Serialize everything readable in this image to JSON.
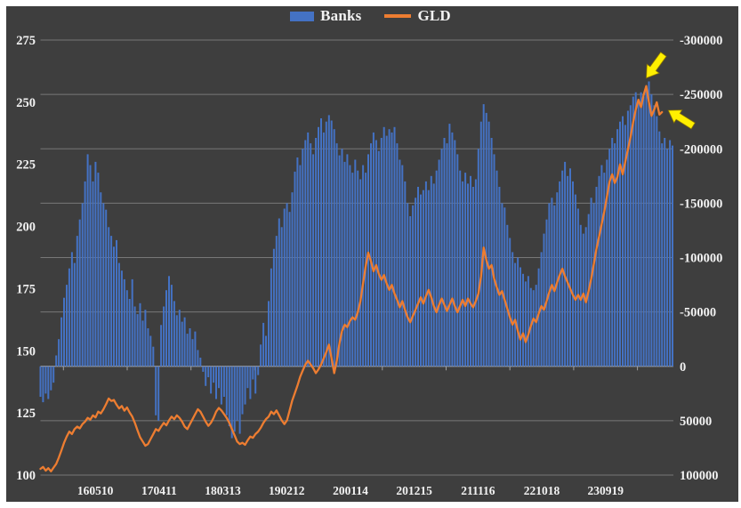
{
  "page": {
    "background": "#ffffff",
    "panel_background": "#3e3e3e",
    "text_color": "#f2f2f2",
    "gridline_color": "#828282",
    "zero_line_color": "#a0a0a0"
  },
  "legend": {
    "banks_label": "Banks",
    "gld_label": "GLD",
    "banks_color": "#4472c4",
    "gld_color": "#ed7d31"
  },
  "chart_data": {
    "type": "combo",
    "x_tick_labels": [
      "160510",
      "170411",
      "180313",
      "190212",
      "200114",
      "201215",
      "211116",
      "221018",
      "230919"
    ],
    "left_axis": {
      "ticks": [
        275,
        250,
        225,
        200,
        175,
        150,
        125,
        100
      ],
      "min": 100,
      "max": 275
    },
    "right_axis": {
      "ticks": [
        -300000,
        -250000,
        -200000,
        -150000,
        -100000,
        -50000,
        0,
        50000,
        100000
      ],
      "min": -300000,
      "max": 100000,
      "inverted": true
    },
    "grid": true,
    "legend_position": "top",
    "series": [
      {
        "name": "Banks",
        "type": "bar",
        "axis": "right",
        "color": "#4472c4",
        "unit": "contracts",
        "value_scale": 1000,
        "values": [
          28,
          33,
          25,
          30,
          22,
          15,
          -10,
          -25,
          -45,
          -63,
          -75,
          -90,
          -105,
          -95,
          -120,
          -135,
          -150,
          -170,
          -195,
          -185,
          -170,
          -188,
          -178,
          -160,
          -150,
          -144,
          -128,
          -120,
          -110,
          -116,
          -95,
          -88,
          -80,
          -70,
          -62,
          -80,
          -55,
          -48,
          -58,
          -42,
          -52,
          -35,
          -28,
          -18,
          45,
          50,
          -38,
          -55,
          -70,
          -83,
          -75,
          -60,
          -47,
          -52,
          -41,
          -45,
          -30,
          -35,
          -25,
          -32,
          -15,
          -8,
          5,
          18,
          10,
          25,
          15,
          30,
          20,
          35,
          28,
          45,
          55,
          66,
          60,
          50,
          62,
          44,
          35,
          20,
          30,
          12,
          25,
          8,
          -20,
          -40,
          -28,
          -60,
          -90,
          -108,
          -120,
          -136,
          -128,
          -145,
          -150,
          -142,
          -160,
          -179,
          -192,
          -185,
          -200,
          -208,
          -215,
          -205,
          -195,
          -210,
          -220,
          -228,
          -215,
          -225,
          -231,
          -226,
          -218,
          -205,
          -194,
          -200,
          -188,
          -195,
          -185,
          -178,
          -190,
          -180,
          -172,
          -185,
          -178,
          -195,
          -205,
          -215,
          -208,
          -198,
          -210,
          -220,
          -212,
          -218,
          -215,
          -220,
          -205,
          -190,
          -185,
          -170,
          -150,
          -138,
          -148,
          -155,
          -165,
          -158,
          -162,
          -170,
          -162,
          -175,
          -168,
          -180,
          -190,
          -200,
          -210,
          -205,
          -223,
          -215,
          -208,
          -195,
          -180,
          -170,
          -178,
          -168,
          -175,
          -165,
          -172,
          -200,
          -225,
          -241,
          -233,
          -225,
          -210,
          -195,
          -180,
          -165,
          -150,
          -146,
          -130,
          -118,
          -105,
          -95,
          -100,
          -91,
          -85,
          -78,
          -83,
          -72,
          -70,
          -75,
          -90,
          -105,
          -122,
          -135,
          -150,
          -155,
          -148,
          -160,
          -170,
          -180,
          -188,
          -175,
          -182,
          -170,
          -158,
          -145,
          -130,
          -122,
          -128,
          -140,
          -155,
          -150,
          -165,
          -175,
          -185,
          -178,
          -190,
          -200,
          -210,
          -205,
          -218,
          -225,
          -230,
          -222,
          -235,
          -240,
          -248,
          -252,
          -245,
          -252,
          -248,
          -256,
          -262,
          -250,
          -240,
          -230,
          -216,
          -205,
          -210,
          -200,
          -208,
          -203
        ]
      },
      {
        "name": "GLD",
        "type": "line",
        "axis": "left",
        "color": "#ed7d31",
        "value_scale": 1,
        "values": [
          102.5,
          103.3,
          101.8,
          102.8,
          101.5,
          103,
          104.5,
          107,
          110,
          113,
          115.5,
          117.5,
          116.5,
          118.5,
          119.5,
          118.8,
          120.5,
          121.5,
          123,
          122.3,
          124,
          123.2,
          125.5,
          124.8,
          126.5,
          128.5,
          130.8,
          129.8,
          130.2,
          128.3,
          126.8,
          127.8,
          125.9,
          127.2,
          125.2,
          123.5,
          121,
          118,
          115.2,
          113.5,
          111.8,
          112.5,
          114.5,
          116.5,
          118.5,
          117.8,
          119.5,
          121,
          120,
          122,
          123.5,
          122.5,
          124,
          123,
          121.5,
          119.5,
          118.5,
          120.5,
          122.5,
          124.5,
          126.5,
          125.5,
          123.5,
          121.5,
          119.8,
          121,
          123,
          125.5,
          127,
          126,
          124.5,
          123,
          121,
          118.5,
          116,
          113.5,
          112.5,
          113,
          112.2,
          114,
          115.5,
          115,
          116.5,
          117.5,
          119,
          121,
          122.5,
          123.5,
          125.5,
          124.5,
          126,
          124,
          122,
          120.5,
          122,
          126,
          130,
          133,
          136,
          139.5,
          142,
          144.5,
          146,
          144.5,
          143,
          141,
          142.5,
          144.5,
          147,
          149.5,
          152.5,
          147,
          141,
          146,
          153,
          158,
          160.5,
          159.5,
          162,
          163.5,
          162.5,
          165.5,
          170,
          177,
          184,
          189.5,
          186,
          182,
          184.5,
          181,
          178.5,
          180.5,
          177,
          174.5,
          176.5,
          173,
          170.5,
          167.5,
          170,
          166.5,
          163.5,
          161.5,
          164,
          166.5,
          169,
          171.5,
          169,
          172,
          174.5,
          171.5,
          168,
          165.5,
          168.5,
          171,
          168.5,
          166,
          168.5,
          171,
          168,
          165.5,
          168,
          170.5,
          168,
          171,
          169,
          167.5,
          170,
          173,
          180,
          191.5,
          186.5,
          183,
          184.5,
          179,
          175.5,
          172.5,
          174,
          170.5,
          167,
          163.5,
          160.5,
          162.5,
          158,
          154.5,
          157,
          153.5,
          156.5,
          160,
          163,
          161.5,
          165,
          168,
          166.5,
          170,
          173.5,
          176.5,
          174,
          177.5,
          180.5,
          183,
          180,
          177.5,
          175,
          172.5,
          170.5,
          172.5,
          170.5,
          173,
          169.5,
          174,
          179,
          185,
          191,
          196,
          201,
          206,
          212,
          218,
          221,
          217.5,
          220,
          225,
          221,
          226,
          231,
          236,
          242,
          247,
          251,
          248,
          253,
          256.5,
          250,
          244.5,
          247,
          250,
          245,
          246
        ]
      }
    ],
    "annotations": [
      {
        "name": "arrow-at-gld-peak",
        "shape": "block-arrow",
        "color": "#ffef00",
        "points_at": "GLD peak",
        "target_series": "GLD",
        "target_index": 231,
        "direction": "down-left"
      },
      {
        "name": "arrow-at-gld-end",
        "shape": "block-arrow",
        "color": "#ffef00",
        "points_at": "GLD latest pullback",
        "target_series": "GLD",
        "target_index": 237,
        "direction": "up-left"
      }
    ]
  }
}
